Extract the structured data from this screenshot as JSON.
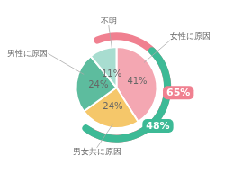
{
  "chart_data": {
    "type": "pie",
    "categories": [
      "女性に原因",
      "男女共に原因",
      "男性に原因",
      "不明"
    ],
    "values": [
      41,
      24,
      24,
      11
    ],
    "value_labels": [
      "41%",
      "24%",
      "24%",
      "11%"
    ],
    "colors": [
      "#f4a7b2",
      "#f5c76a",
      "#5dbc9e",
      "#a8ddd0"
    ],
    "data_labels": true,
    "annotations": [
      {
        "value": 65,
        "label": "65%",
        "color": "#f08090"
      },
      {
        "value": 48,
        "label": "48%",
        "color": "#3dba96"
      }
    ]
  }
}
